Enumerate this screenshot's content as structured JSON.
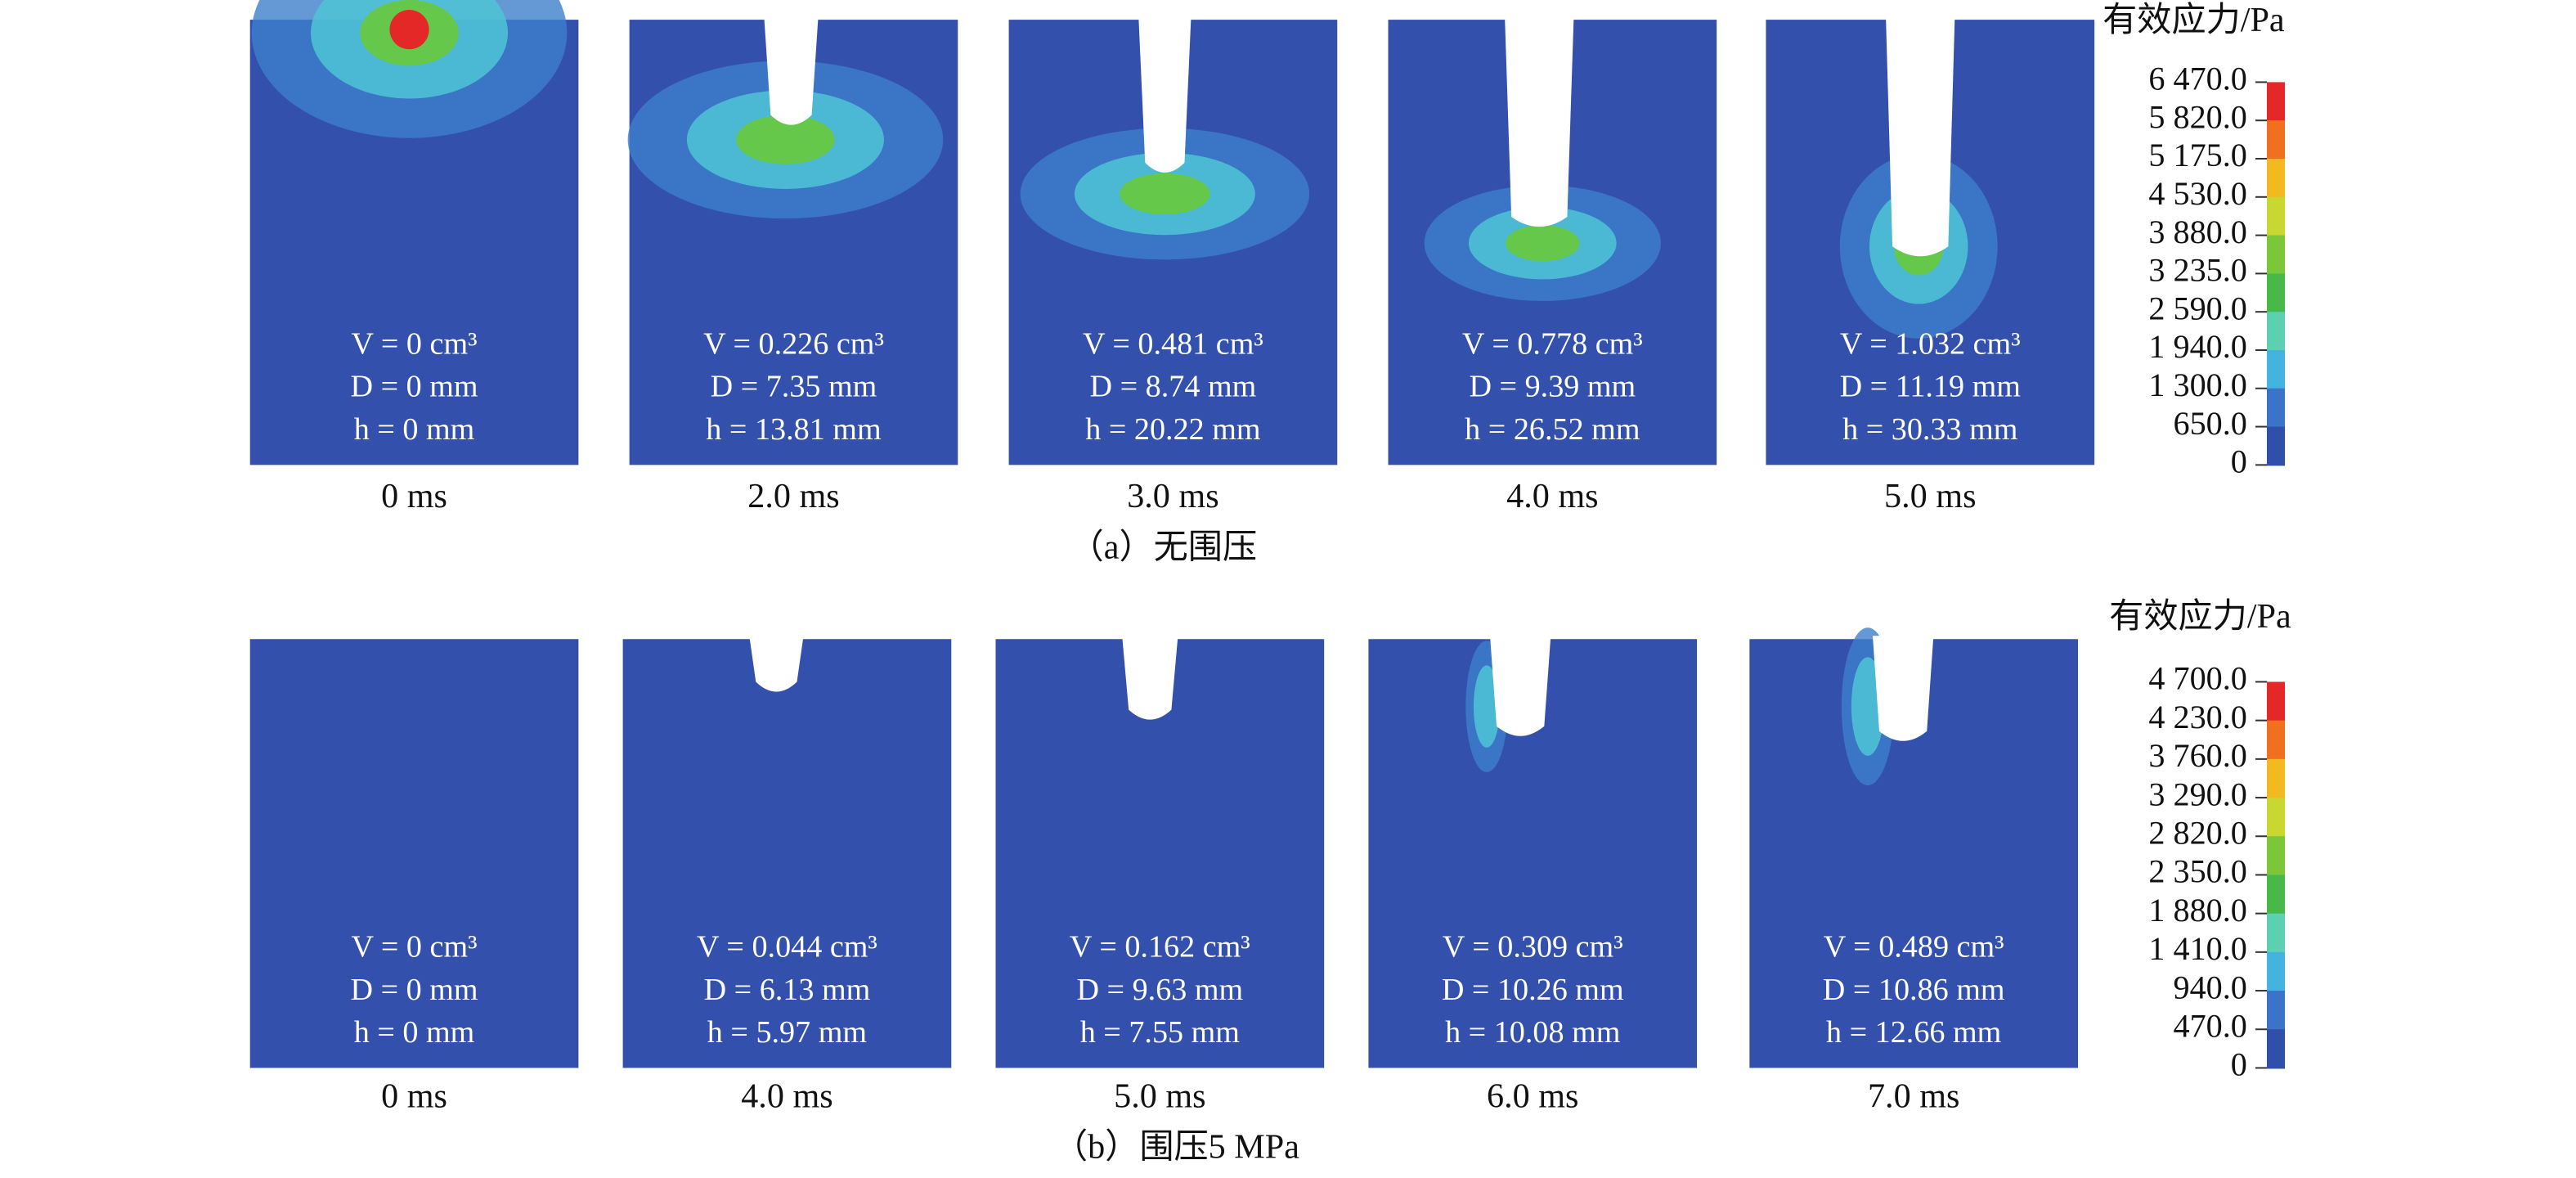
{
  "groups": [
    {
      "caption": "（a）无围压",
      "legend_title": "有效应力/Pa",
      "legend_ticks": [
        "6 470.0",
        "5 820.0",
        "5 175.0",
        "4 530.0",
        "3 880.0",
        "3 235.0",
        "2 590.0",
        "1 940.0",
        "1 300.0",
        "650.0",
        "0"
      ],
      "panels": [
        {
          "time": "0 ms",
          "lines": [
            "V = 0 cm³",
            "D = 0 mm",
            "h = 0 mm"
          ]
        },
        {
          "time": "2.0 ms",
          "lines": [
            "V = 0.226 cm³",
            "D = 7.35 mm",
            "h = 13.81 mm"
          ]
        },
        {
          "time": "3.0 ms",
          "lines": [
            "V = 0.481 cm³",
            "D = 8.74 mm",
            "h = 20.22 mm"
          ]
        },
        {
          "time": "4.0 ms",
          "lines": [
            "V = 0.778 cm³",
            "D = 9.39 mm",
            "h = 26.52 mm"
          ]
        },
        {
          "time": "5.0 ms",
          "lines": [
            "V = 1.032 cm³",
            "D = 11.19 mm",
            "h = 30.33 mm"
          ]
        }
      ]
    },
    {
      "caption": "（b）围压5 MPa",
      "legend_title": "有效应力/Pa",
      "legend_ticks": [
        "4 700.0",
        "4 230.0",
        "3 760.0",
        "3 290.0",
        "2 820.0",
        "2 350.0",
        "1 880.0",
        "1 410.0",
        "940.0",
        "470.0",
        "0"
      ],
      "panels": [
        {
          "time": "0 ms",
          "lines": [
            "V = 0 cm³",
            "D = 0 mm",
            "h = 0 mm"
          ]
        },
        {
          "time": "4.0 ms",
          "lines": [
            "V = 0.044 cm³",
            "D = 6.13 mm",
            "h = 5.97 mm"
          ]
        },
        {
          "time": "5.0 ms",
          "lines": [
            "V = 0.162 cm³",
            "D = 9.63 mm",
            "h = 7.55 mm"
          ]
        },
        {
          "time": "6.0 ms",
          "lines": [
            "V = 0.309 cm³",
            "D = 10.26 mm",
            "h = 10.08 mm"
          ]
        },
        {
          "time": "7.0 ms",
          "lines": [
            "V = 0.489 cm³",
            "D = 10.86 mm",
            "h = 12.66 mm"
          ]
        }
      ]
    }
  ]
}
